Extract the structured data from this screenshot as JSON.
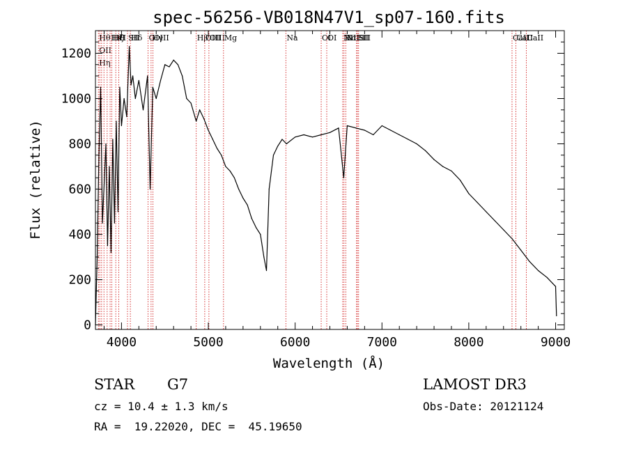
{
  "chart_data": {
    "type": "line",
    "title": "spec-56256-VB018N47V1_sp07-160.fits",
    "xlabel": "Wavelength (Å)",
    "ylabel": "Flux (relative)",
    "xlim": [
      3700,
      9100
    ],
    "ylim": [
      -20,
      1300
    ],
    "x_ticks": [
      4000,
      5000,
      6000,
      7000,
      8000,
      9000
    ],
    "x_tick_labels": [
      "4000",
      "5000",
      "6000",
      "7000",
      "8000",
      "9000"
    ],
    "y_ticks": [
      0,
      200,
      400,
      600,
      800,
      1000,
      1200
    ],
    "y_tick_labels": [
      "0",
      "200",
      "400",
      "600",
      "800",
      "1000",
      "1200"
    ],
    "series": [
      {
        "name": "flux",
        "x": [
          3700,
          3720,
          3740,
          3760,
          3780,
          3800,
          3820,
          3840,
          3860,
          3880,
          3900,
          3920,
          3940,
          3960,
          3980,
          4000,
          4030,
          4060,
          4090,
          4110,
          4130,
          4160,
          4200,
          4250,
          4300,
          4330,
          4360,
          4400,
          4450,
          4500,
          4550,
          4600,
          4650,
          4700,
          4750,
          4800,
          4860,
          4900,
          4950,
          5000,
          5050,
          5100,
          5150,
          5200,
          5250,
          5300,
          5350,
          5400,
          5450,
          5500,
          5550,
          5600,
          5640,
          5670,
          5700,
          5750,
          5800,
          5850,
          5900,
          6000,
          6100,
          6200,
          6300,
          6400,
          6500,
          6560,
          6600,
          6700,
          6800,
          6900,
          7000,
          7100,
          7200,
          7300,
          7400,
          7500,
          7600,
          7700,
          7800,
          7900,
          8000,
          8100,
          8200,
          8300,
          8400,
          8500,
          8600,
          8700,
          8800,
          8900,
          9000,
          9010
        ],
        "values": [
          0,
          300,
          750,
          1050,
          450,
          620,
          800,
          350,
          700,
          320,
          820,
          450,
          900,
          500,
          1050,
          880,
          1000,
          920,
          1230,
          1060,
          1100,
          1000,
          1080,
          950,
          1100,
          600,
          1050,
          1000,
          1080,
          1150,
          1140,
          1170,
          1150,
          1100,
          1000,
          980,
          900,
          950,
          910,
          860,
          820,
          780,
          750,
          700,
          680,
          650,
          600,
          560,
          530,
          470,
          430,
          400,
          300,
          240,
          600,
          750,
          790,
          820,
          800,
          830,
          840,
          830,
          840,
          850,
          870,
          650,
          880,
          870,
          860,
          840,
          880,
          860,
          840,
          820,
          800,
          770,
          730,
          700,
          680,
          640,
          580,
          540,
          500,
          460,
          420,
          380,
          330,
          280,
          240,
          210,
          170,
          40
        ]
      }
    ],
    "line_markers": [
      {
        "wavelength": 3734,
        "labels": [
          "Hθ",
          "OII",
          "Hη"
        ]
      },
      {
        "wavelength": 3750,
        "labels": []
      },
      {
        "wavelength": 3771,
        "labels": []
      },
      {
        "wavelength": 3798,
        "labels": []
      },
      {
        "wavelength": 3835,
        "labels": []
      },
      {
        "wavelength": 3869,
        "labels": [
          "HeI"
        ]
      },
      {
        "wavelength": 3889,
        "labels": [
          "Hζ"
        ]
      },
      {
        "wavelength": 3934,
        "labels": [
          "K"
        ]
      },
      {
        "wavelength": 3968,
        "labels": [
          "H"
        ]
      },
      {
        "wavelength": 4069,
        "labels": [
          "SII"
        ]
      },
      {
        "wavelength": 4102,
        "labels": [
          "Hδ"
        ]
      },
      {
        "wavelength": 4306,
        "labels": [
          "G"
        ]
      },
      {
        "wavelength": 4341,
        "labels": [
          "Hγ"
        ]
      },
      {
        "wavelength": 4363,
        "labels": [
          "OIII"
        ]
      },
      {
        "wavelength": 4861,
        "labels": [
          "Hβ"
        ]
      },
      {
        "wavelength": 4959,
        "labels": [
          "OIII"
        ]
      },
      {
        "wavelength": 5007,
        "labels": [
          "OIII"
        ]
      },
      {
        "wavelength": 5175,
        "labels": [
          "Mg"
        ]
      },
      {
        "wavelength": 5893,
        "labels": [
          "Na"
        ]
      },
      {
        "wavelength": 6300,
        "labels": [
          "OI"
        ]
      },
      {
        "wavelength": 6364,
        "labels": [
          "OI"
        ]
      },
      {
        "wavelength": 6548,
        "labels": [
          "NII"
        ]
      },
      {
        "wavelength": 6563,
        "labels": [
          "Hα"
        ]
      },
      {
        "wavelength": 6583,
        "labels": [
          "NII"
        ]
      },
      {
        "wavelength": 6708,
        "labels": [
          "Li"
        ]
      },
      {
        "wavelength": 6716,
        "labels": [
          "SII"
        ]
      },
      {
        "wavelength": 6731,
        "labels": [
          "SII"
        ]
      },
      {
        "wavelength": 8498,
        "labels": [
          "CaII"
        ]
      },
      {
        "wavelength": 8542,
        "labels": [
          "CaII"
        ]
      },
      {
        "wavelength": 8662,
        "labels": [
          "CaII"
        ]
      }
    ],
    "colors": {
      "spectrum": "#000000",
      "markers": "#cc0000",
      "axes": "#000000"
    }
  },
  "info": {
    "object_class": "STAR",
    "subclass": "G7",
    "survey": "LAMOST DR3",
    "redshift": "cz = 10.4 ± 1.3 km/s",
    "obs_date": "Obs-Date: 20121124",
    "coords": "RA =  19.22020, DEC =  45.19650"
  }
}
